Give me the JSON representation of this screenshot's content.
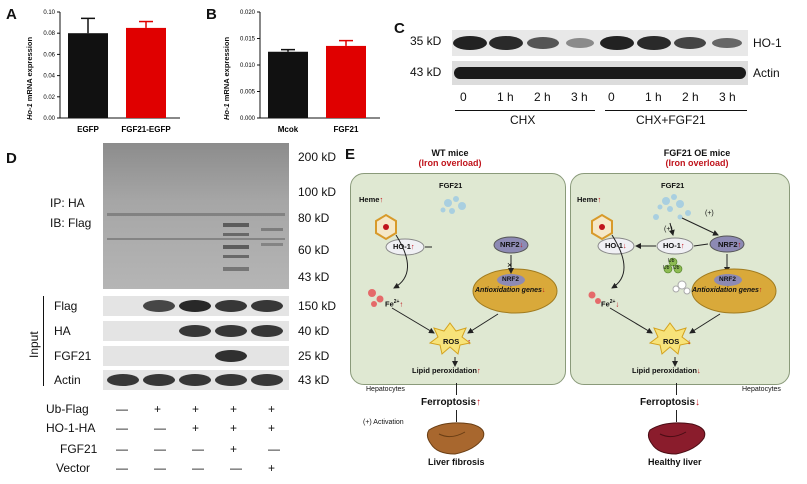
{
  "panels": {
    "A": "A",
    "B": "B",
    "C": "C",
    "D": "D",
    "E": "E"
  },
  "panelA": {
    "chart_data": {
      "type": "bar",
      "categories": [
        "EGFP",
        "FGF21-EGFP"
      ],
      "values": [
        0.08,
        0.085
      ],
      "errors": [
        0.014,
        0.006
      ],
      "colors": [
        "#111111",
        "#e00000"
      ],
      "ylabel_italic": "Ho-1",
      "ylabel_rest": " mRNA expression",
      "ylim": [
        0,
        0.1
      ],
      "ticks": [
        "0.00",
        "0.02",
        "0.04",
        "0.06",
        "0.08",
        "0.10"
      ]
    }
  },
  "panelB": {
    "chart_data": {
      "type": "bar",
      "categories": [
        "Mcok",
        "FGF21"
      ],
      "values": [
        0.0125,
        0.0136
      ],
      "errors": [
        0.0004,
        0.001
      ],
      "colors": [
        "#111111",
        "#e00000"
      ],
      "ylabel_italic": "Ho-1",
      "ylabel_rest": " mRNA expression",
      "ylim": [
        0,
        0.02
      ],
      "ticks": [
        "0.000",
        "0.005",
        "0.010",
        "0.015",
        "0.020"
      ]
    }
  },
  "panelC": {
    "marker_top": "35 kD",
    "marker_bottom": "43 kD",
    "band_top": "HO-1",
    "band_bottom": "Actin",
    "timepoints": [
      "0",
      "1 h",
      "2 h",
      "3 h",
      "0",
      "1 h",
      "2 h",
      "3 h"
    ],
    "group1": "CHX",
    "group2": "CHX+FGF21"
  },
  "panelD": {
    "markers": [
      "200 kD",
      "100 kD",
      "80 kD",
      "60 kD",
      "43 kD"
    ],
    "ip": "IP: HA",
    "ib": "IB: Flag",
    "input_label": "Input",
    "input_rows": [
      {
        "name": "Flag",
        "kd": "150 kD"
      },
      {
        "name": "HA",
        "kd": "40 kD"
      },
      {
        "name": "FGF21",
        "kd": "25 kD"
      },
      {
        "name": "Actin",
        "kd": "43 kD"
      }
    ],
    "conditions": [
      {
        "name": "Ub-Flag",
        "marks": [
          "—",
          "+",
          "+",
          "+",
          "+"
        ]
      },
      {
        "name": "HO-1-HA",
        "marks": [
          "—",
          "—",
          "+",
          "+",
          "+"
        ]
      },
      {
        "name": "FGF21",
        "marks": [
          "—",
          "—",
          "—",
          "+",
          "—"
        ]
      },
      {
        "name": "Vector",
        "marks": [
          "—",
          "—",
          "—",
          "—",
          "+"
        ]
      }
    ]
  },
  "panelE": {
    "left": {
      "title": "WT mice",
      "subtitle": "(Iron overload)",
      "fgf21": "FGF21",
      "heme": "Heme",
      "ho1": "HO-1",
      "nrf2": "NRF2",
      "nrf2_inner": "NRF2",
      "genes": "Antioxidation genes",
      "fe": "Fe",
      "fe_sup": "2+",
      "ros": "ROS",
      "lipid": "Lipid peroxidation",
      "hepatocytes": "Hepatocytes",
      "ferroptosis": "Ferroptosis",
      "activation": "(+) Activation",
      "outcome": "Liver fibrosis"
    },
    "right": {
      "title": "FGF21 OE mice",
      "subtitle": "(Iron overload)",
      "fgf21": "FGF21",
      "heme": "Heme",
      "ho1a": "HO-1",
      "ho1b": "HO-1",
      "plus1": "(+)",
      "plus2": "(+)",
      "ub": "Ub",
      "nrf2": "NRF2",
      "nrf2_inner": "NRF2",
      "genes": "Antioxidation genes",
      "fe": "Fe",
      "fe_sup": "2+",
      "ros": "ROS",
      "lipid": "Lipid peroxidation",
      "hepatocytes": "Hepatocytes",
      "ferroptosis": "Ferroptosis",
      "outcome": "Healthy liver"
    },
    "arrow_up": "↑",
    "arrow_down": "↓"
  }
}
